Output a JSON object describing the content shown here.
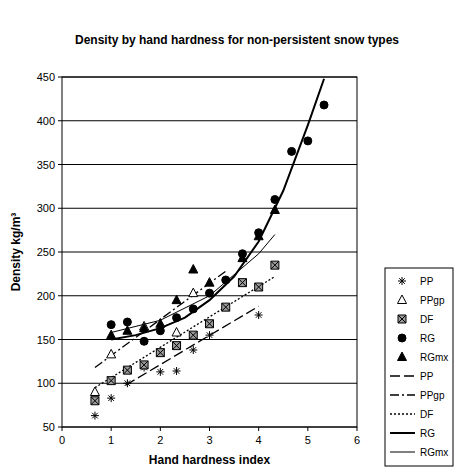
{
  "chart_data": {
    "type": "scatter",
    "title": "Density by hand hardness for non-persistent snow types",
    "x_label": "Hand hardness index",
    "y_label": "Density kg/m³",
    "xlim": [
      0,
      6
    ],
    "xticks": [
      0,
      1,
      2,
      3,
      4,
      5,
      6
    ],
    "ylim": [
      50,
      450
    ],
    "yticks": [
      50,
      100,
      150,
      200,
      250,
      300,
      350,
      400,
      450
    ],
    "grid": true,
    "legend": "right",
    "series": [
      {
        "name": "PP",
        "type": "scatter",
        "marker": "asterisk",
        "color": "#000000",
        "x": [
          0.67,
          1,
          1.33,
          1.67,
          2,
          2.33,
          2.67,
          3,
          4
        ],
        "values": [
          63,
          83,
          100,
          118,
          113,
          114,
          138,
          155,
          178
        ]
      },
      {
        "name": "PPgp",
        "type": "scatter",
        "marker": "triangle-open",
        "color": "#000000",
        "x": [
          0.67,
          1,
          1.67,
          2.33,
          2.67
        ],
        "values": [
          90,
          133,
          165,
          158,
          203
        ]
      },
      {
        "name": "DF",
        "type": "scatter",
        "marker": "square-x",
        "color": "#000000",
        "x": [
          0.67,
          1,
          1.33,
          1.67,
          2,
          2.33,
          2.67,
          3,
          3.33,
          3.67,
          4,
          4.33
        ],
        "values": [
          80,
          103,
          115,
          121,
          135,
          143,
          155,
          168,
          187,
          215,
          210,
          235
        ]
      },
      {
        "name": "RG",
        "type": "scatter",
        "marker": "circle",
        "color": "#000000",
        "x": [
          1,
          1.33,
          1.67,
          2,
          2.33,
          2.67,
          3,
          3.33,
          3.67,
          4,
          4.33,
          4.67,
          5,
          5.33
        ],
        "values": [
          167,
          170,
          148,
          160,
          175,
          185,
          203,
          218,
          248,
          272,
          310,
          365,
          377,
          418
        ]
      },
      {
        "name": "RGmx",
        "type": "scatter",
        "marker": "triangle",
        "color": "#000000",
        "x": [
          1,
          1.33,
          1.67,
          2,
          2.33,
          2.67,
          3,
          3.67,
          4,
          4.33
        ],
        "values": [
          155,
          160,
          163,
          168,
          195,
          230,
          215,
          243,
          268,
          298
        ]
      },
      {
        "name": "PP",
        "type": "line",
        "line_style": "long-dash",
        "color": "#000000",
        "x": [
          1.3,
          4
        ],
        "values": [
          98,
          188
        ]
      },
      {
        "name": "PPgp",
        "type": "line",
        "line_style": "dash-dot",
        "color": "#000000",
        "x": [
          0.67,
          3.33
        ],
        "values": [
          118,
          228
        ]
      },
      {
        "name": "DF",
        "type": "line",
        "line_style": "dotted",
        "color": "#000000",
        "x": [
          0.67,
          4.33
        ],
        "values": [
          95,
          222
        ]
      },
      {
        "name": "RG",
        "type": "line",
        "line_style": "solid-thick",
        "color": "#000000",
        "x": [
          1,
          1.5,
          2,
          2.5,
          3,
          3.5,
          4,
          4.5,
          5,
          5.33
        ],
        "values": [
          150,
          155,
          163,
          175,
          195,
          222,
          262,
          320,
          395,
          448
        ]
      },
      {
        "name": "RGmx",
        "type": "line",
        "line_style": "solid",
        "color": "#000000",
        "x": [
          1,
          2,
          3,
          4,
          4.33
        ],
        "values": [
          158,
          172,
          200,
          248,
          270
        ]
      }
    ]
  }
}
